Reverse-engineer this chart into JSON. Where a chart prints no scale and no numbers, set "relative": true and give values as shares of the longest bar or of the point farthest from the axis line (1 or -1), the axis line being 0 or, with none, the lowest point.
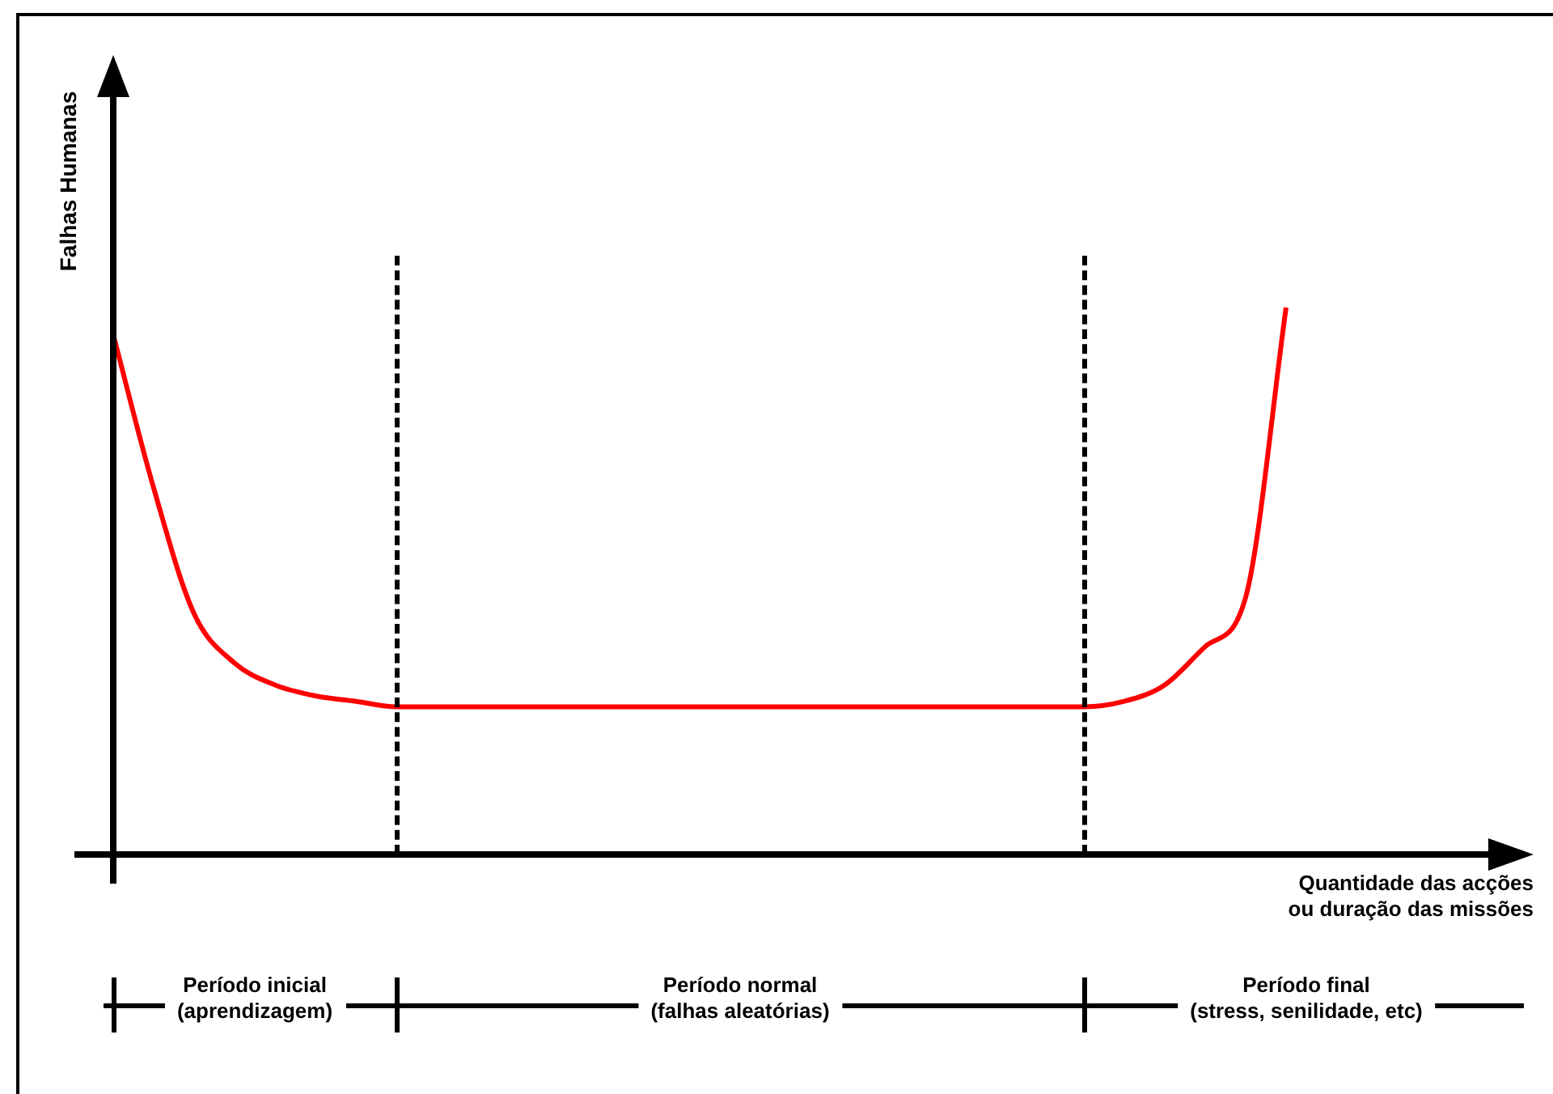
{
  "chart_data": {
    "type": "line",
    "relative": true,
    "xlabel": "Quantidade das acções\nou duração das missões",
    "ylabel": "Falhas Humanas",
    "categories": [
      null,
      null,
      null,
      null,
      null,
      null,
      null,
      null,
      null,
      null,
      null,
      null,
      null,
      null,
      null,
      null,
      null,
      null,
      null,
      null,
      null,
      null,
      null,
      null,
      null,
      null,
      null,
      null,
      null,
      null,
      null,
      null,
      null,
      null,
      null,
      null
    ],
    "series": [
      {
        "color": "#ff0000",
        "values": [
          0.95,
          0.67,
          0.44,
          0.35,
          0.31,
          0.29,
          0.28,
          0.27,
          0.27,
          0.27,
          0.27,
          0.27,
          0.27,
          0.27,
          0.27,
          0.27,
          0.27,
          0.27,
          0.27,
          0.27,
          0.27,
          0.27,
          0.27,
          0.27,
          0.27,
          0.28,
          0.31,
          0.38,
          0.47,
          1,
          null,
          null,
          null,
          null,
          null,
          null
        ]
      }
    ],
    "annotations": [
      "Período inicial\n(aprendizagem)",
      "Período normal\n(falhas aleatórias)",
      "Período final\n(stress, senilidade, etc)"
    ],
    "legend": false,
    "marker": "none",
    "line_style": "solid"
  }
}
